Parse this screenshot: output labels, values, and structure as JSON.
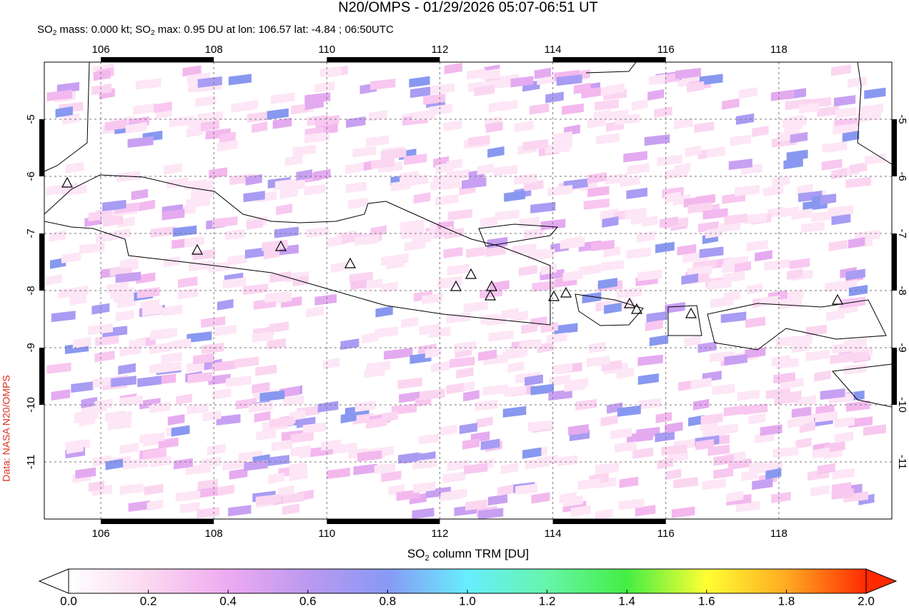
{
  "map": {
    "title": "N20/OMPS - 01/29/2026 05:07-06:51 UT",
    "subtitle": [
      "SO",
      "2",
      " mass: 0.000 kt; SO",
      "2",
      " max: 0.95 DU at lon: 106.57 lat: -4.84 ; 06:50UTC"
    ],
    "credit": "Data: NASA N20/OMPS",
    "xlim": [
      105,
      120
    ],
    "ylim": [
      -12,
      -4
    ],
    "xticks": [
      106,
      108,
      110,
      112,
      114,
      116,
      118
    ],
    "yticks": [
      -5,
      -6,
      -7,
      -8,
      -9,
      -10,
      -11
    ],
    "colorbar": {
      "label": [
        "SO",
        "2",
        " column TRM [DU]"
      ],
      "clim": [
        0,
        2
      ],
      "ticks": [
        {
          "value": 0,
          "label": "0.0"
        },
        {
          "value": 0.2,
          "label": "0.2"
        },
        {
          "value": 0.4,
          "label": "0.4"
        },
        {
          "value": 0.6,
          "label": "0.6"
        },
        {
          "value": 0.8,
          "label": "0.8"
        },
        {
          "value": 1,
          "label": "1.0"
        },
        {
          "value": 1.2,
          "label": "1.2"
        },
        {
          "value": 1.4,
          "label": "1.4"
        },
        {
          "value": 1.6,
          "label": "1.6"
        },
        {
          "value": 1.8,
          "label": "1.8"
        },
        {
          "value": 2,
          "label": "2.0"
        }
      ]
    }
  }
}
